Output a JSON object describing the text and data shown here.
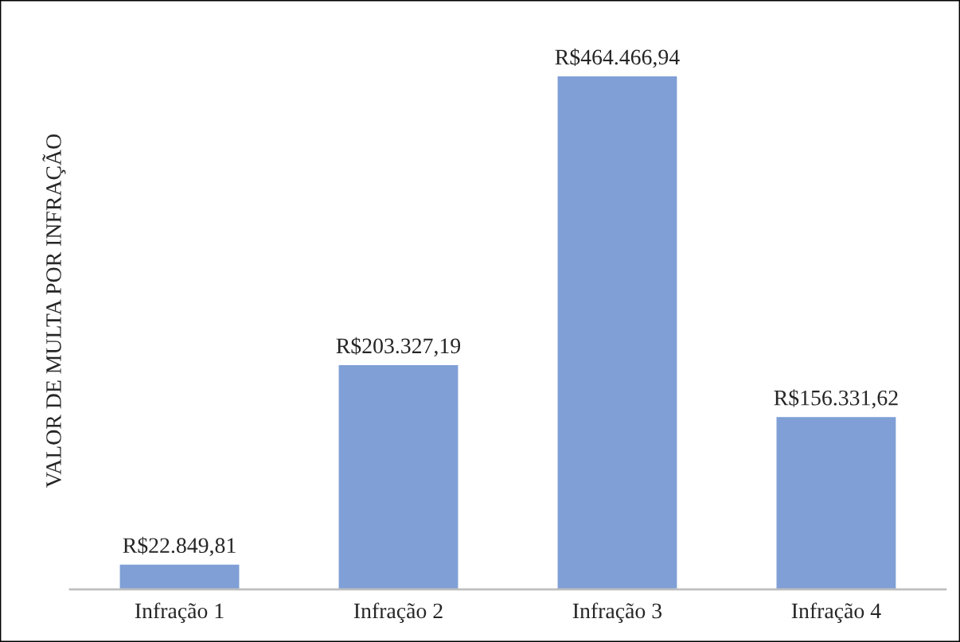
{
  "chart_data": {
    "type": "bar",
    "ylabel": "VALOR DE MULTA POR INFRAÇÃO",
    "categories": [
      "Infração 1",
      "Infração 2",
      "Infração 3",
      "Infração 4"
    ],
    "values": [
      22849.81,
      203327.19,
      464466.94,
      156331.62
    ],
    "value_labels": [
      "R$22.849,81",
      "R$203.327,19",
      "R$464.466,94",
      "R$156.331,62"
    ],
    "color": "#7f9fd6"
  }
}
